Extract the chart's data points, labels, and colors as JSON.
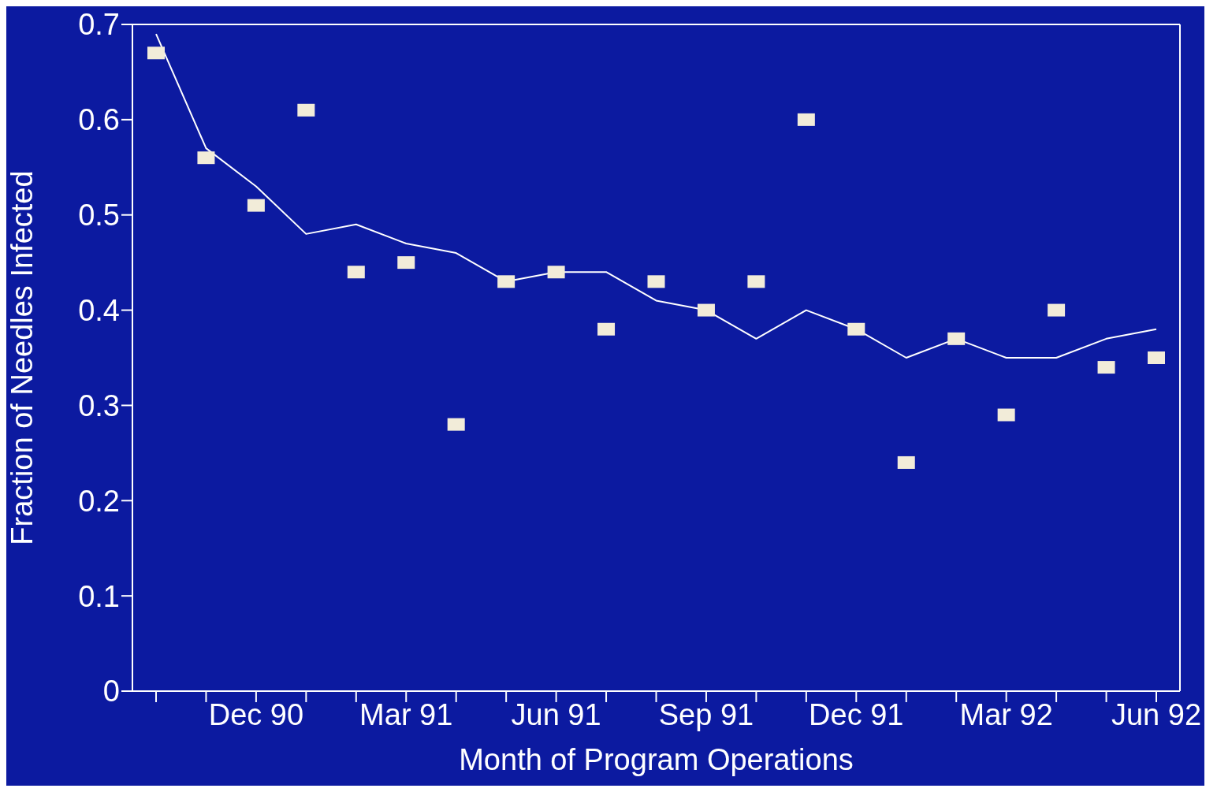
{
  "chart_data": {
    "type": "scatter",
    "xlabel": "Month of Program Operations",
    "ylabel": "Fraction of Needles Infected",
    "categories": [
      null,
      null,
      "Dec 90",
      null,
      null,
      "Mar 91",
      null,
      null,
      "Jun 91",
      null,
      null,
      "Sep 91",
      null,
      null,
      "Dec 91",
      null,
      null,
      "Mar 92",
      null,
      null,
      "Jun 92"
    ],
    "series": [
      {
        "type": "line",
        "color": "#ffffff",
        "marker": "none",
        "values": [
          0.69,
          0.57,
          0.53,
          0.48,
          0.49,
          0.47,
          0.46,
          0.43,
          0.44,
          0.44,
          0.41,
          0.4,
          0.37,
          0.4,
          0.38,
          0.35,
          0.37,
          0.35,
          0.35,
          0.37,
          0.38
        ]
      },
      {
        "color": "#f2ecd9",
        "marker": "square",
        "values": [
          0.67,
          0.56,
          0.51,
          0.61,
          0.44,
          0.45,
          0.28,
          0.43,
          0.44,
          0.38,
          0.43,
          0.4,
          0.43,
          0.6,
          0.38,
          0.24,
          0.37,
          0.29,
          0.4,
          0.34,
          0.35
        ]
      }
    ],
    "ylim": [
      0,
      0.7
    ],
    "yticks": [
      0,
      0.1,
      0.2,
      0.3,
      0.4,
      0.5,
      0.6,
      0.7
    ],
    "grid": false
  }
}
